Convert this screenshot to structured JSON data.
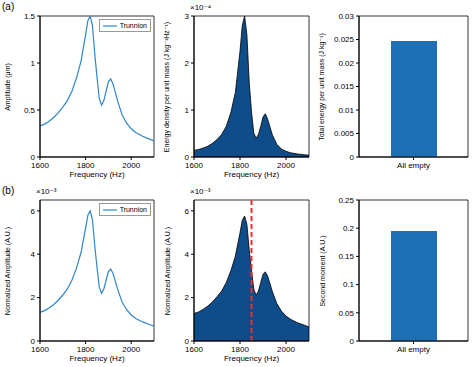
{
  "panel_labels": [
    "(a)",
    "(b)"
  ],
  "chart_data": [
    {
      "type": "line",
      "x_label": "Frequency (Hz)",
      "y_label": "Amplitude (μm)",
      "x": [
        1600,
        1620,
        1640,
        1660,
        1680,
        1700,
        1720,
        1740,
        1760,
        1780,
        1800,
        1810,
        1820,
        1830,
        1840,
        1850,
        1860,
        1870,
        1880,
        1890,
        1900,
        1910,
        1920,
        1940,
        1960,
        1980,
        2000,
        2020,
        2050,
        2080,
        2100
      ],
      "series": [
        {
          "name": "Trunnion",
          "color": "#2e86c9",
          "values": [
            0.33,
            0.35,
            0.38,
            0.42,
            0.47,
            0.53,
            0.6,
            0.7,
            0.84,
            1.02,
            1.3,
            1.45,
            1.5,
            1.4,
            1.1,
            0.85,
            0.62,
            0.55,
            0.6,
            0.7,
            0.8,
            0.83,
            0.78,
            0.6,
            0.45,
            0.36,
            0.3,
            0.26,
            0.22,
            0.19,
            0.17
          ]
        }
      ],
      "xlim": [
        1600,
        2100
      ],
      "xticks": [
        1600,
        1800,
        2000
      ],
      "ylim": [
        0,
        1.5
      ],
      "yticks": [
        0,
        0.5,
        1,
        1.5
      ],
      "legend": "upper right"
    },
    {
      "type": "area",
      "x_label": "Frequency (Hz)",
      "y_label": "Energy density per unit mass (J kg⁻¹Hz⁻¹)",
      "y_exponent_label": "×10⁻⁴",
      "x": [
        1600,
        1620,
        1640,
        1660,
        1680,
        1700,
        1720,
        1740,
        1760,
        1780,
        1800,
        1810,
        1820,
        1830,
        1840,
        1850,
        1860,
        1870,
        1880,
        1890,
        1900,
        1910,
        1920,
        1940,
        1960,
        1980,
        2000,
        2020,
        2050,
        2080,
        2100
      ],
      "values": [
        0.14,
        0.16,
        0.19,
        0.23,
        0.29,
        0.37,
        0.48,
        0.65,
        0.94,
        1.38,
        2.25,
        2.8,
        3.0,
        2.6,
        1.6,
        0.96,
        0.51,
        0.4,
        0.48,
        0.65,
        0.85,
        0.92,
        0.81,
        0.48,
        0.27,
        0.17,
        0.12,
        0.09,
        0.064,
        0.048,
        0.038
      ],
      "color": "#0e4d8a",
      "xlim": [
        1600,
        2100
      ],
      "xticks": [
        1600,
        1800,
        2000
      ],
      "ylim": [
        0,
        3
      ],
      "yticks": [
        0,
        1,
        2,
        3
      ]
    },
    {
      "type": "bar",
      "y_label": "Total energy per unit mass (J kg⁻¹)",
      "categories": [
        "All empty"
      ],
      "values": [
        0.0247
      ],
      "color": "#1f6fb4",
      "ylim": [
        0,
        0.03
      ],
      "yticks": [
        0,
        0.005,
        0.01,
        0.015,
        0.02,
        0.025,
        0.03
      ]
    },
    {
      "type": "line",
      "x_label": "Frequency (Hz)",
      "y_label": "Normalized Amplitude (A.U.)",
      "y_exponent_label": "×10⁻³",
      "x": [
        1600,
        1620,
        1640,
        1660,
        1680,
        1700,
        1720,
        1740,
        1760,
        1780,
        1800,
        1810,
        1820,
        1830,
        1840,
        1850,
        1860,
        1870,
        1880,
        1890,
        1900,
        1910,
        1920,
        1940,
        1960,
        1980,
        2000,
        2020,
        2050,
        2080,
        2100
      ],
      "series": [
        {
          "name": "Trunnion",
          "color": "#2e86c9",
          "values": [
            1.32,
            1.4,
            1.52,
            1.68,
            1.88,
            2.12,
            2.4,
            2.8,
            3.36,
            4.08,
            5.2,
            5.8,
            6.0,
            5.6,
            4.4,
            3.4,
            2.48,
            2.2,
            2.4,
            2.8,
            3.2,
            3.32,
            3.12,
            2.4,
            1.8,
            1.44,
            1.2,
            1.04,
            0.88,
            0.76,
            0.68
          ]
        }
      ],
      "xlim": [
        1600,
        2100
      ],
      "xticks": [
        1600,
        1800,
        2000
      ],
      "ylim": [
        0,
        6.5
      ],
      "yticks": [
        0,
        2,
        4,
        6
      ],
      "legend": "upper right"
    },
    {
      "type": "area",
      "x_label": "Frequency (Hz)",
      "y_label": "Normalized Amplitude (A.U.)",
      "y_exponent_label": "×10⁻³",
      "x": [
        1600,
        1620,
        1640,
        1660,
        1680,
        1700,
        1720,
        1740,
        1760,
        1780,
        1800,
        1810,
        1820,
        1830,
        1840,
        1850,
        1860,
        1870,
        1880,
        1890,
        1900,
        1910,
        1920,
        1940,
        1960,
        1980,
        2000,
        2020,
        2050,
        2080,
        2100
      ],
      "values": [
        1.27,
        1.34,
        1.46,
        1.61,
        1.8,
        2.04,
        2.3,
        2.69,
        3.23,
        3.92,
        4.99,
        5.57,
        5.76,
        5.38,
        4.22,
        3.26,
        2.38,
        2.11,
        2.3,
        2.69,
        3.07,
        3.19,
        3.0,
        2.3,
        1.73,
        1.38,
        1.15,
        1.0,
        0.84,
        0.73,
        0.65
      ],
      "color": "#0e4d8a",
      "xlim": [
        1600,
        2100
      ],
      "xticks": [
        1600,
        1800,
        2000
      ],
      "ylim": [
        0,
        6.5
      ],
      "yticks": [
        0,
        2,
        4,
        6
      ],
      "vertical_line": {
        "x": 1850,
        "color": "#e8312a",
        "line_style": "dashed"
      }
    },
    {
      "type": "bar",
      "y_label": "Second moment (A.U.)",
      "categories": [
        "All empty"
      ],
      "values": [
        0.195
      ],
      "color": "#1f6fb4",
      "ylim": [
        0,
        0.25
      ],
      "yticks": [
        0,
        0.05,
        0.1,
        0.15,
        0.2,
        0.25
      ]
    }
  ]
}
